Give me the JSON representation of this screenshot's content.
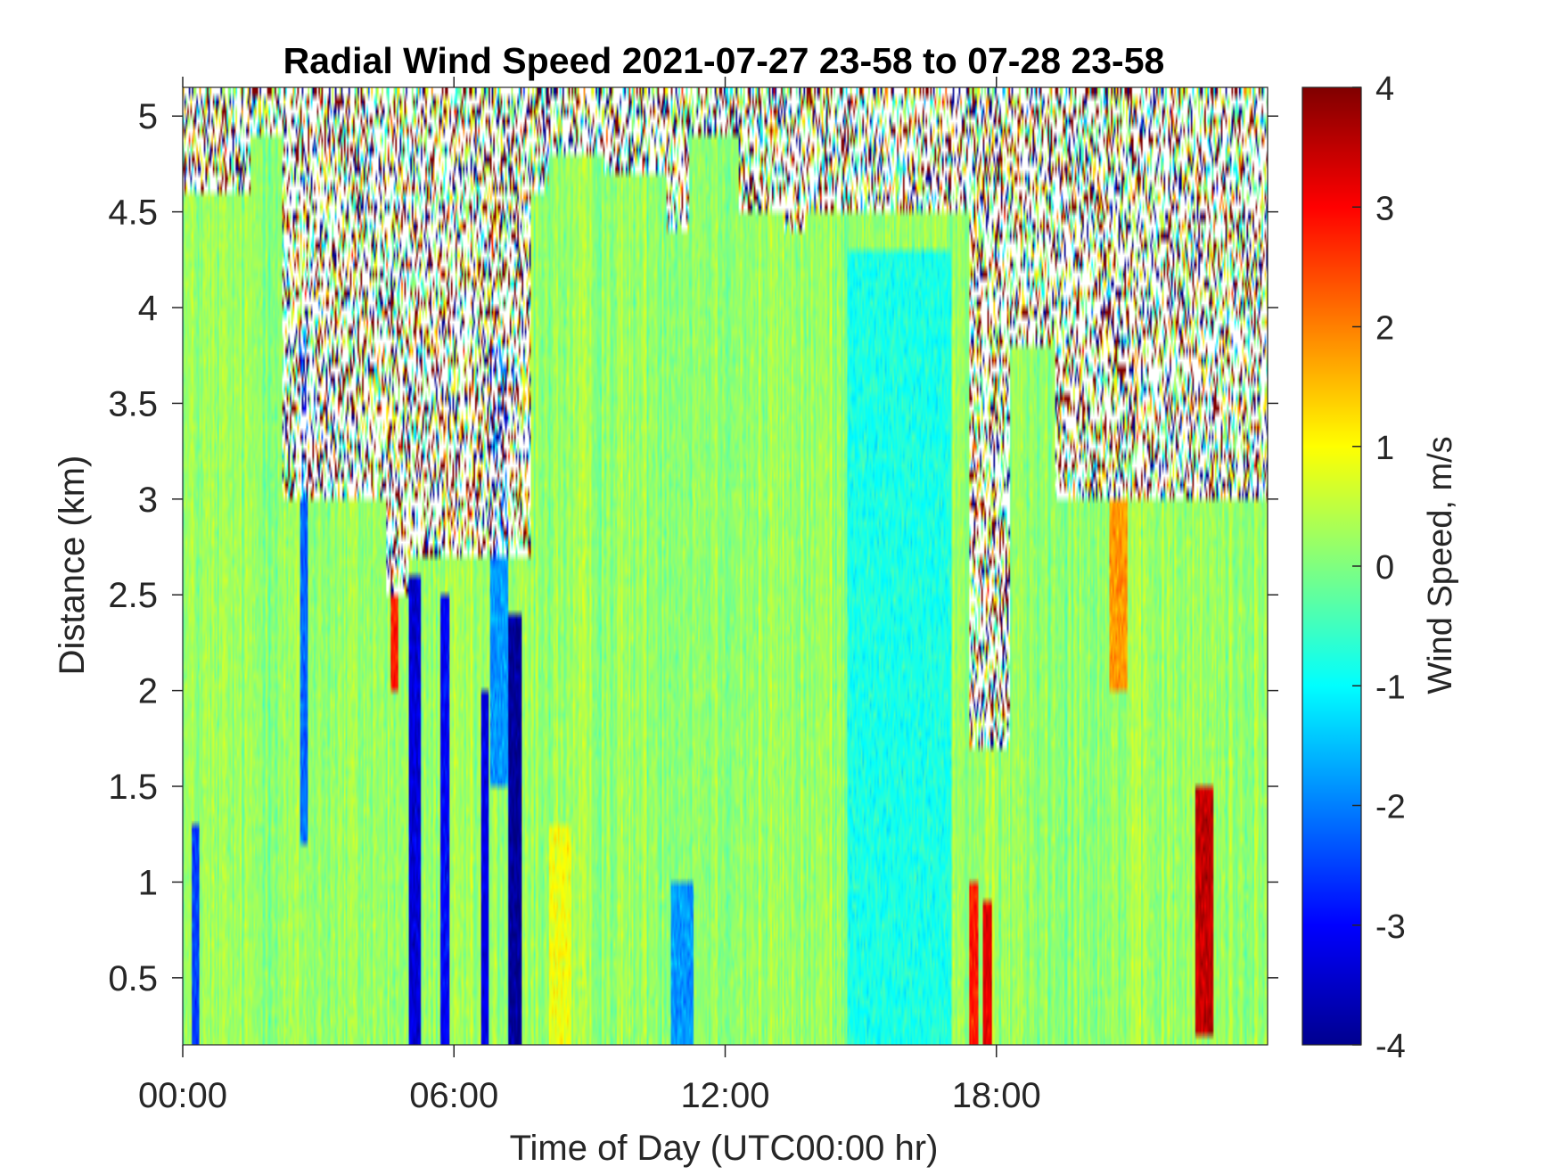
{
  "chart_data": {
    "type": "heatmap",
    "title": "Radial Wind Speed 2021-07-27 23-58 to 07-28 23-58",
    "xlabel": "Time of Day (UTC00:00 hr)",
    "ylabel": "Distance (km)",
    "colorbar_label": "Wind Speed, m/s",
    "colormap": "jet",
    "x_unit": "hours",
    "xlim": [
      0,
      24
    ],
    "ylim": [
      0.15,
      5.15
    ],
    "clim": [
      -4,
      4
    ],
    "x_ticks": [
      {
        "value": 0,
        "label": "00:00"
      },
      {
        "value": 6,
        "label": "06:00"
      },
      {
        "value": 12,
        "label": "12:00"
      },
      {
        "value": 18,
        "label": "18:00"
      }
    ],
    "y_ticks": [
      {
        "value": 0.5,
        "label": "0.5"
      },
      {
        "value": 1,
        "label": "1"
      },
      {
        "value": 1.5,
        "label": "1.5"
      },
      {
        "value": 2,
        "label": "2"
      },
      {
        "value": 2.5,
        "label": "2.5"
      },
      {
        "value": 3,
        "label": "3"
      },
      {
        "value": 3.5,
        "label": "3.5"
      },
      {
        "value": 4,
        "label": "4"
      },
      {
        "value": 4.5,
        "label": "4.5"
      },
      {
        "value": 5,
        "label": "5"
      }
    ],
    "colorbar_ticks": [
      {
        "value": 4,
        "label": "4"
      },
      {
        "value": 3,
        "label": "3"
      },
      {
        "value": 2,
        "label": "2"
      },
      {
        "value": 1,
        "label": "1"
      },
      {
        "value": 0,
        "label": "0"
      },
      {
        "value": -1,
        "label": "-1"
      },
      {
        "value": -2,
        "label": "-2"
      },
      {
        "value": -3,
        "label": "-3"
      },
      {
        "value": -4,
        "label": "-4"
      }
    ],
    "background_speed": 0.2,
    "features": [
      {
        "kind": "noise_above",
        "x0": 0.0,
        "x1": 1.5,
        "y0": 4.6
      },
      {
        "kind": "noise_above",
        "x0": 1.5,
        "x1": 2.2,
        "y0": 4.9
      },
      {
        "kind": "noise_above",
        "x0": 2.2,
        "x1": 7.7,
        "y0": 3.0
      },
      {
        "kind": "noise_above",
        "x0": 4.5,
        "x1": 5.0,
        "y0": 2.5
      },
      {
        "kind": "noise_above",
        "x0": 5.0,
        "x1": 7.7,
        "y0": 2.7
      },
      {
        "kind": "noise_above",
        "x0": 7.7,
        "x1": 8.1,
        "y0": 4.6
      },
      {
        "kind": "noise_above",
        "x0": 8.1,
        "x1": 9.3,
        "y0": 4.8
      },
      {
        "kind": "noise_above",
        "x0": 9.3,
        "x1": 10.7,
        "y0": 4.7
      },
      {
        "kind": "noise_above",
        "x0": 10.7,
        "x1": 11.2,
        "y0": 4.4
      },
      {
        "kind": "noise_above",
        "x0": 11.2,
        "x1": 12.3,
        "y0": 4.9
      },
      {
        "kind": "noise_above",
        "x0": 12.3,
        "x1": 13.3,
        "y0": 4.5
      },
      {
        "kind": "noise_above",
        "x0": 13.3,
        "x1": 13.8,
        "y0": 4.4
      },
      {
        "kind": "noise_above",
        "x0": 13.8,
        "x1": 14.8,
        "y0": 4.5
      },
      {
        "kind": "noise_above",
        "x0": 14.8,
        "x1": 17.4,
        "y0": 4.5
      },
      {
        "kind": "noise_above",
        "x0": 17.4,
        "x1": 18.3,
        "y0": 1.7
      },
      {
        "kind": "noise_above",
        "x0": 18.3,
        "x1": 19.3,
        "y0": 3.8
      },
      {
        "kind": "noise_above",
        "x0": 19.3,
        "x1": 24.0,
        "y0": 3.0
      },
      {
        "kind": "band",
        "x0": 0.2,
        "x1": 0.35,
        "y0": 0.15,
        "y1": 1.3,
        "v": -2.5
      },
      {
        "kind": "band",
        "x0": 2.6,
        "x1": 2.75,
        "y0": 1.2,
        "y1": 3.9,
        "v": -2.2
      },
      {
        "kind": "band",
        "x0": 4.6,
        "x1": 4.75,
        "y0": 2.0,
        "y1": 2.5,
        "v": 2.8
      },
      {
        "kind": "band",
        "x0": 5.0,
        "x1": 5.25,
        "y0": 0.15,
        "y1": 2.6,
        "v": -3.3
      },
      {
        "kind": "band",
        "x0": 5.7,
        "x1": 5.9,
        "y0": 0.15,
        "y1": 2.5,
        "v": -3.0
      },
      {
        "kind": "band",
        "x0": 6.6,
        "x1": 6.75,
        "y0": 0.15,
        "y1": 2.0,
        "v": -3.2
      },
      {
        "kind": "band",
        "x0": 6.8,
        "x1": 7.2,
        "y0": 1.5,
        "y1": 3.8,
        "v": -1.8
      },
      {
        "kind": "band",
        "x0": 7.2,
        "x1": 7.5,
        "y0": 0.15,
        "y1": 2.4,
        "v": -3.8
      },
      {
        "kind": "band",
        "x0": 8.1,
        "x1": 8.6,
        "y0": 0.15,
        "y1": 1.3,
        "v": 0.9
      },
      {
        "kind": "band",
        "x0": 10.8,
        "x1": 11.3,
        "y0": 0.15,
        "y1": 1.0,
        "v": -1.8
      },
      {
        "kind": "band",
        "x0": 14.7,
        "x1": 17.0,
        "y0": 0.15,
        "y1": 4.3,
        "v": -0.8
      },
      {
        "kind": "band",
        "x0": 17.4,
        "x1": 17.6,
        "y0": 0.15,
        "y1": 1.0,
        "v": 2.8
      },
      {
        "kind": "band",
        "x0": 17.7,
        "x1": 17.9,
        "y0": 0.15,
        "y1": 0.9,
        "v": 3.2
      },
      {
        "kind": "band",
        "x0": 20.5,
        "x1": 20.9,
        "y0": 2.0,
        "y1": 3.0,
        "v": 1.8
      },
      {
        "kind": "band",
        "x0": 22.4,
        "x1": 22.8,
        "y0": 0.2,
        "y1": 1.5,
        "v": 3.5
      }
    ]
  }
}
